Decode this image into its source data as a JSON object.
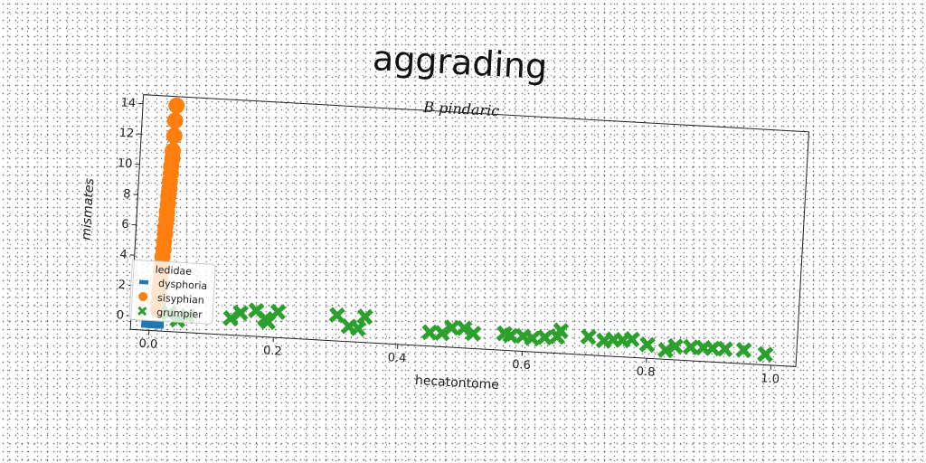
{
  "chart_data": {
    "type": "scatter",
    "title": "aggrading",
    "subtitle": "B pindaric",
    "xlabel": "hecatontome",
    "ylabel": "mismates",
    "xlim": [
      -0.03,
      1.04
    ],
    "ylim": [
      -0.9,
      14.6
    ],
    "x_ticks": [
      0.0,
      0.2,
      0.4,
      0.6,
      0.8,
      1.0
    ],
    "x_tick_labels": [
      "0.0",
      "0.2",
      "0.4",
      "0.6",
      "0.8",
      "1.0"
    ],
    "y_ticks": [
      0,
      2,
      4,
      6,
      8,
      10,
      12,
      14
    ],
    "y_tick_labels": [
      "0",
      "2",
      "4",
      "6",
      "8",
      "10",
      "12",
      "14"
    ],
    "grid": false,
    "legend": {
      "title": "ledidae",
      "placement": "lower-left"
    },
    "series": [
      {
        "name": "dysphoria",
        "marker": "square",
        "color": "#1f77b4",
        "x": [
          0.0,
          0.005,
          0.01
        ],
        "y": [
          -0.5,
          -0.5,
          -0.5
        ]
      },
      {
        "name": "sisyphian",
        "marker": "circle",
        "color": "#ff7f0e",
        "x": [
          0.012,
          0.012,
          0.013,
          0.013,
          0.014,
          0.014,
          0.015,
          0.015,
          0.016,
          0.016,
          0.017,
          0.017,
          0.018,
          0.018,
          0.019,
          0.019,
          0.02,
          0.02,
          0.021,
          0.021,
          0.022,
          0.022,
          0.023,
          0.023,
          0.024
        ],
        "y": [
          0.5,
          1.0,
          1.5,
          2.0,
          2.5,
          3.0,
          3.5,
          4.0,
          4.5,
          5.0,
          5.5,
          6.0,
          6.5,
          7.0,
          7.5,
          8.0,
          8.5,
          9.0,
          9.5,
          10.0,
          10.5,
          11.0,
          12.0,
          13.0,
          14.0
        ]
      },
      {
        "name": "grumpier",
        "marker": "x",
        "color": "#2ca02c",
        "x": [
          0.03,
          0.045,
          0.06,
          0.13,
          0.145,
          0.17,
          0.185,
          0.19,
          0.205,
          0.3,
          0.32,
          0.335,
          0.345,
          0.45,
          0.47,
          0.485,
          0.505,
          0.52,
          0.57,
          0.58,
          0.6,
          0.615,
          0.635,
          0.655,
          0.66,
          0.705,
          0.73,
          0.745,
          0.76,
          0.775,
          0.8,
          0.83,
          0.845,
          0.87,
          0.89,
          0.905,
          0.925,
          0.955,
          0.99
        ],
        "y": [
          0.3,
          -0.1,
          0.2,
          0.2,
          0.6,
          0.8,
          0.3,
          0.1,
          0.8,
          0.8,
          0.1,
          0.0,
          0.8,
          0.0,
          0.0,
          0.4,
          0.4,
          0.1,
          0.2,
          0.1,
          0.1,
          0.0,
          0.1,
          0.2,
          0.6,
          0.3,
          0.1,
          0.2,
          0.2,
          0.3,
          0.0,
          -0.3,
          0.0,
          0.0,
          0.0,
          0.0,
          0.0,
          0.0,
          -0.2
        ]
      }
    ]
  }
}
